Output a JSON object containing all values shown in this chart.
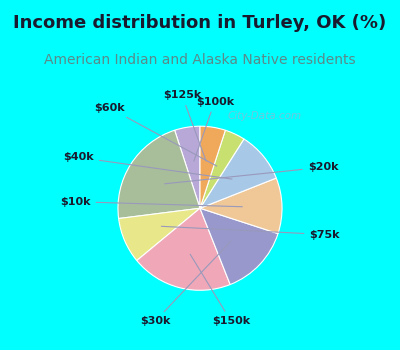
{
  "title": "Income distribution in Turley, OK (%)",
  "subtitle": "American Indian and Alaska Native residents",
  "title_color": "#1a1a2e",
  "subtitle_color": "#5a8a8a",
  "background_color": "#00FFFF",
  "chart_bg_top": "#d8ede0",
  "chart_bg_bottom": "#e8f4f0",
  "watermark": "City-Data.com",
  "labels": [
    "$100k",
    "$20k",
    "$75k",
    "$150k",
    "$30k",
    "$10k",
    "$40k",
    "$60k",
    "$125k"
  ],
  "values": [
    5,
    22,
    9,
    20,
    14,
    11,
    10,
    4,
    5
  ],
  "colors": [
    "#b8a8d8",
    "#a8be9a",
    "#e8e88a",
    "#f0a8b8",
    "#9898cc",
    "#f0c898",
    "#a8c8e8",
    "#c8e070",
    "#f0a85a"
  ],
  "startangle": 90,
  "label_fontsize": 8,
  "title_fontsize": 13,
  "subtitle_fontsize": 10,
  "label_color": "#1a1a2e"
}
